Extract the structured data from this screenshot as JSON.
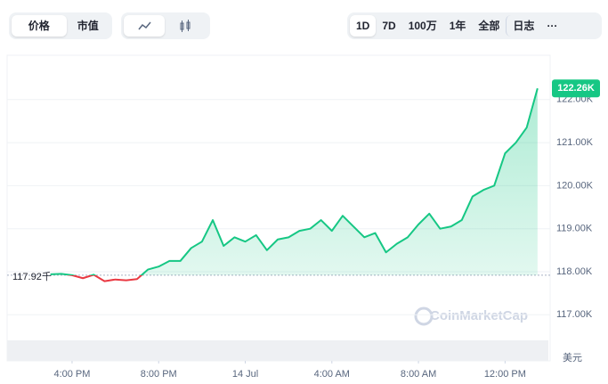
{
  "toolbar": {
    "tabs": [
      "价格",
      "市值"
    ],
    "ranges": [
      "1D",
      "7D",
      "100万",
      "1年",
      "全部",
      "日志",
      "···"
    ]
  },
  "chart_data": {
    "type": "line",
    "color": "#16c784",
    "below_color": "#ea3943",
    "x": [
      15,
      15.5,
      16,
      16.5,
      17,
      17.5,
      18,
      18.5,
      19,
      19.5,
      20,
      20.5,
      21,
      21.5,
      22,
      22.5,
      23,
      23.5,
      24,
      24.5,
      25,
      25.5,
      26,
      26.5,
      27,
      27.5,
      28,
      28.5,
      29,
      29.5,
      30,
      30.5,
      31,
      31.5,
      32,
      32.5,
      33,
      33.5,
      34,
      34.5,
      35,
      35.5,
      36,
      36.5,
      37,
      37.5
    ],
    "values": [
      117940,
      117950,
      117920,
      117850,
      117930,
      117780,
      117820,
      117800,
      117830,
      118050,
      118120,
      118250,
      118250,
      118550,
      118700,
      119200,
      118600,
      118800,
      118700,
      118850,
      118500,
      118750,
      118800,
      118950,
      119000,
      119200,
      118950,
      119300,
      119050,
      118800,
      118900,
      118450,
      118650,
      118800,
      119100,
      119350,
      119000,
      119050,
      119200,
      119750,
      119900,
      120000,
      120750,
      121000,
      121350,
      122260
    ],
    "xlim": [
      13,
      38
    ],
    "xticks": [
      {
        "value": 16,
        "label": "4:00 PM"
      },
      {
        "value": 20,
        "label": "8:00 PM"
      },
      {
        "value": 24,
        "label": "14 Jul"
      },
      {
        "value": 28,
        "label": "4:00 AM"
      },
      {
        "value": 32,
        "label": "8:00 AM"
      },
      {
        "value": 36,
        "label": "12:00 PM"
      }
    ],
    "ylim": [
      115930,
      123030
    ],
    "yticks": [
      {
        "value": 117000,
        "label": "117.00K"
      },
      {
        "value": 118000,
        "label": "118.00K"
      },
      {
        "value": 119000,
        "label": "119.00K"
      },
      {
        "value": 120000,
        "label": "120.00K"
      },
      {
        "value": 121000,
        "label": "121.00K"
      },
      {
        "value": 122000,
        "label": "122.00K"
      }
    ],
    "grid": true,
    "reference": {
      "value": 117920,
      "label": "117.92千"
    },
    "last_label": {
      "value": 122260,
      "label": "122.26K"
    },
    "y_unit": "美元",
    "watermark": "CoinMarketCap"
  }
}
